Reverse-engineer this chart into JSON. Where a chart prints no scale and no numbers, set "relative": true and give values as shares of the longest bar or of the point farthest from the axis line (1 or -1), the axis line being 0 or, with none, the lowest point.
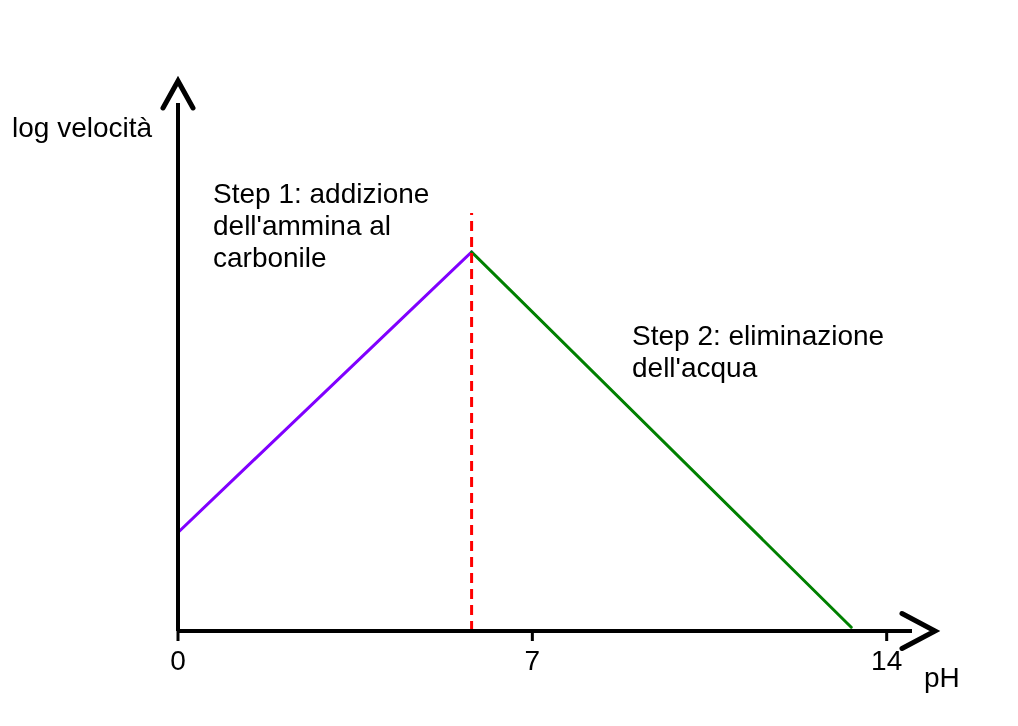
{
  "chart_data": {
    "type": "line",
    "xlabel": "pH",
    "ylabel": "log velocità",
    "relative": true,
    "xlim": [
      0,
      14.5
    ],
    "xticks": [
      0,
      7,
      14
    ],
    "series": [
      {
        "name": "Step 1: addizione dell'ammina al carbonile",
        "color": "#8000ff",
        "x": [
          0,
          5.8
        ],
        "values": [
          0.26,
          1
        ]
      },
      {
        "name": "Step 2: eliminazione dell'acqua",
        "color": "#008000",
        "x": [
          5.8,
          13.3
        ],
        "values": [
          1,
          0.01
        ]
      }
    ],
    "ref_lines": [
      {
        "axis": "x",
        "value": 5.8,
        "color": "#ff0000",
        "line_style": "dashed"
      }
    ]
  }
}
